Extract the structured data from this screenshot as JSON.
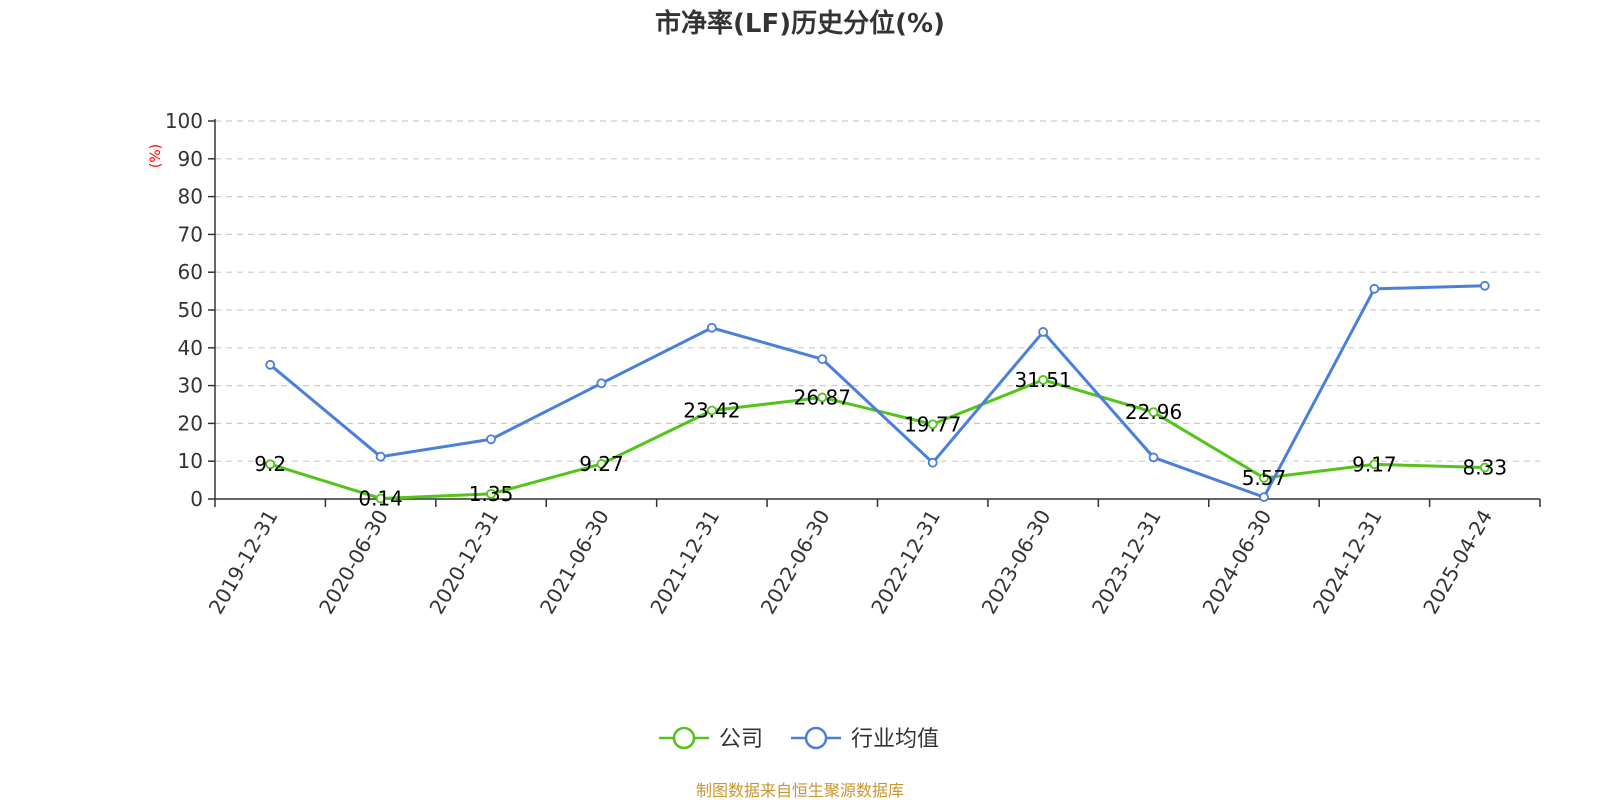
{
  "chart_data": {
    "type": "line",
    "title": "市净率(LF)历史分位(%)",
    "ylabel": "(%)",
    "xlabel": "",
    "ylim": [
      0,
      100
    ],
    "yticks": [
      0,
      10,
      20,
      30,
      40,
      50,
      60,
      70,
      80,
      90,
      100
    ],
    "grid": true,
    "legend_position": "bottom-center",
    "categories": [
      "2019-12-31",
      "2020-06-30",
      "2020-12-31",
      "2021-06-30",
      "2021-12-31",
      "2022-06-30",
      "2022-12-31",
      "2023-06-30",
      "2023-12-31",
      "2024-06-30",
      "2024-12-31",
      "2025-04-24"
    ],
    "series": [
      {
        "name": "公司",
        "color": "#52c41a",
        "show_labels": true,
        "values": [
          9.2,
          0.14,
          1.35,
          9.27,
          23.42,
          26.87,
          19.77,
          31.51,
          22.96,
          5.57,
          9.17,
          8.33
        ],
        "labels": [
          "9.2",
          "0.14",
          "1.35",
          "9.27",
          "23.42",
          "26.87",
          "19.77",
          "31.51",
          "22.96",
          "5.57",
          "9.17",
          "8.33"
        ]
      },
      {
        "name": "行业均值",
        "color": "#4a7fdc",
        "show_labels": false,
        "values": [
          35.5,
          11.2,
          15.8,
          30.6,
          45.3,
          37.0,
          9.6,
          44.2,
          11.0,
          0.5,
          55.6,
          56.4
        ]
      }
    ]
  },
  "footer": {
    "source": "制图数据来自恒生聚源数据库"
  }
}
